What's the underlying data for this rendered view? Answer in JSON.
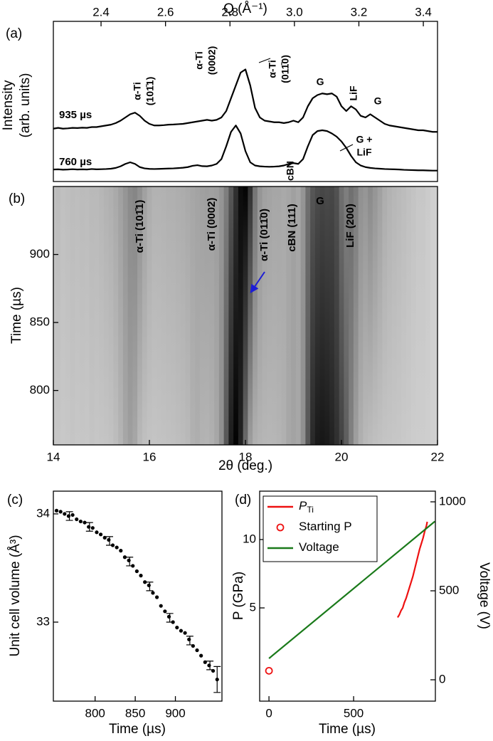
{
  "chart_data": [
    {
      "type": "line",
      "panel_label": "(a)",
      "ylabel": [
        "Intensity",
        "(arb. units)"
      ],
      "x2label": "Q (Å⁻¹)",
      "x2lim": [
        2.252,
        3.444
      ],
      "x2ticks": [
        2.4,
        2.6,
        2.8,
        {
          "value": 3,
          "label": "3.0"
        },
        3.2,
        3.4
      ],
      "xlim": [
        14,
        22
      ],
      "ylim": [
        0,
        100
      ],
      "x": [
        14,
        14.1,
        14.2,
        14.3,
        14.4,
        14.5,
        14.6,
        14.7,
        14.8,
        14.9,
        15,
        15.1,
        15.2,
        15.3,
        15.4,
        15.5,
        15.6,
        15.7,
        15.8,
        15.9,
        16,
        16.1,
        16.2,
        16.3,
        16.4,
        16.5,
        16.6,
        16.7,
        16.8,
        16.9,
        17,
        17.1,
        17.2,
        17.3,
        17.4,
        17.5,
        17.6,
        17.7,
        17.8,
        17.9,
        18,
        18.1,
        18.2,
        18.3,
        18.4,
        18.5,
        18.6,
        18.7,
        18.8,
        18.9,
        19,
        19.1,
        19.2,
        19.3,
        19.4,
        19.5,
        19.6,
        19.7,
        19.8,
        19.9,
        20,
        20.1,
        20.2,
        20.3,
        20.4,
        20.5,
        20.6,
        20.7,
        20.8,
        20.9,
        21,
        21.1,
        21.2,
        21.3,
        21.4,
        21.5,
        21.6,
        21.7,
        21.8,
        21.9,
        22
      ],
      "series": [
        {
          "name": "935 µs",
          "color": "#000000",
          "values": [
            33,
            33.5,
            33,
            33.2,
            33.5,
            33.4,
            33.6,
            33.5,
            34,
            34,
            34.5,
            35,
            35.5,
            36.5,
            38,
            40,
            42,
            43,
            41,
            38,
            36,
            35,
            35,
            35.2,
            35.5,
            35.6,
            35.8,
            36,
            36.5,
            37,
            37.5,
            38,
            38.5,
            38,
            38.5,
            40,
            44,
            52,
            60,
            68,
            70,
            60,
            46,
            40,
            38,
            37.5,
            37,
            37,
            36.5,
            37,
            38,
            37,
            40,
            47,
            52,
            54,
            55,
            54.5,
            55,
            53,
            47,
            44,
            47,
            45,
            41,
            40,
            42,
            40,
            38,
            36,
            35,
            34.5,
            34,
            33.5,
            33,
            32.5,
            32,
            32,
            31.5,
            31,
            31
          ]
        },
        {
          "name": "760 µs",
          "color": "#000000",
          "values": [
            7.5,
            7.6,
            7.4,
            7.5,
            7.7,
            7.5,
            7.6,
            7.5,
            7.8,
            7.6,
            7.7,
            7.8,
            8,
            8.5,
            9.5,
            11,
            12,
            11,
            9,
            8.2,
            7.9,
            7.8,
            7.9,
            8,
            8.1,
            8.2,
            8.4,
            8.6,
            9,
            9.8,
            10.2,
            9.6,
            9.5,
            10,
            11,
            14,
            22,
            31,
            35,
            30,
            19,
            12,
            10,
            9.5,
            9.3,
            9.2,
            9.3,
            9.5,
            10,
            11,
            11.5,
            11,
            14,
            22,
            29,
            31.5,
            32,
            31.5,
            30,
            28,
            25,
            21,
            16,
            12,
            10,
            9,
            8.5,
            8.2,
            8,
            7.8,
            7.7,
            7.6,
            7.5,
            7.3,
            7.2,
            7.1,
            7,
            7,
            6.9,
            6.8,
            6.8
          ]
        }
      ],
      "annotations": [
        {
          "text": [
            "α-Ti",
            "(101̄1)"
          ]
        },
        {
          "text": [
            "α-Ti",
            "(0002)"
          ]
        },
        {
          "text": [
            "α-Ti",
            "(011̄0)"
          ]
        },
        {
          "text": [
            "G"
          ]
        },
        {
          "text": [
            "LiF"
          ]
        },
        {
          "text": [
            "G"
          ]
        },
        {
          "text": [
            "cBN"
          ]
        },
        {
          "text": [
            "G +",
            "LiF"
          ]
        }
      ]
    },
    {
      "type": "heatmap",
      "panel_label": "(b)",
      "xlabel": "2θ (deg.)",
      "ylabel": "Time (µs)",
      "xlim": [
        14,
        22
      ],
      "xticks": [
        14,
        16,
        18,
        20,
        22
      ],
      "ylim": [
        760,
        950
      ],
      "yticks": [
        800,
        850,
        900
      ],
      "annotations": [
        {
          "text": "α-Ti (101̄1)",
          "color": "#1c1cd6"
        },
        {
          "text": "α-Ti (0002)",
          "color": "#1c1cd6"
        },
        {
          "text": "α-Ti (011̄0)",
          "color": "#1c1cd6"
        },
        {
          "text": "cBN (111)",
          "color": "#e01414"
        },
        {
          "text": "G",
          "color": "#22e6e6"
        },
        {
          "text": "LiF (200)",
          "color": "#f2f200"
        }
      ]
    },
    {
      "type": "scatter",
      "panel_label": "(c)",
      "xlabel": "Time (µs)",
      "ylabel": "Unit cell volume (Å³)",
      "xlim": [
        748,
        958
      ],
      "xticks": [
        800,
        850,
        900
      ],
      "ylim": [
        32.27,
        34.21
      ],
      "yticks": [
        33,
        34
      ],
      "series": [
        {
          "color": "#000000",
          "x": [
            752,
            757,
            762,
            767,
            772,
            777,
            782,
            787,
            792,
            797,
            802,
            807,
            812,
            817,
            822,
            827,
            832,
            837,
            842,
            847,
            852,
            857,
            862,
            867,
            872,
            877,
            882,
            887,
            892,
            897,
            902,
            907,
            912,
            917,
            922,
            927,
            932,
            937,
            942,
            947,
            952
          ],
          "values": [
            34.03,
            34.02,
            34,
            33.98,
            33.99,
            33.95,
            33.93,
            33.92,
            33.88,
            33.87,
            33.83,
            33.81,
            33.78,
            33.76,
            33.71,
            33.69,
            33.66,
            33.6,
            33.57,
            33.52,
            33.47,
            33.43,
            33.37,
            33.34,
            33.27,
            33.23,
            33.15,
            33.1,
            33.05,
            33,
            32.95,
            32.92,
            32.9,
            32.84,
            32.78,
            32.74,
            32.69,
            32.63,
            32.6,
            32.55,
            32.47
          ]
        },
        {
          "color": "#000000",
          "x": [
            768,
            793,
            818,
            843,
            868,
            893,
            918,
            943,
            952
          ],
          "values": [
            33.98,
            33.88,
            33.75,
            33.56,
            33.33,
            33.04,
            32.83,
            32.6,
            32.47
          ],
          "errors": [
            0.04,
            0.04,
            0.04,
            0.04,
            0.04,
            0.04,
            0.04,
            0.04,
            0.12
          ]
        }
      ]
    },
    {
      "type": "line",
      "panel_label": "(d)",
      "xlabel": "Time (µs)",
      "ylabel": "P (GPa)",
      "y2label": "Voltage (V)",
      "xlim": [
        -55,
        983
      ],
      "xticks": [
        0,
        500
      ],
      "ylim": [
        -1.82,
        13.54
      ],
      "yticks": [
        5,
        10
      ],
      "y2lim": [
        -120,
        1060
      ],
      "y2ticks": [
        0,
        500,
        1000
      ],
      "legend": "upper left",
      "series": [
        {
          "name": "P",
          "name_subscript": "Ti",
          "color": "#ee1111",
          "x": [
            760,
            770,
            780,
            790,
            800,
            810,
            820,
            830,
            840,
            850,
            860,
            870,
            880,
            890,
            900,
            910,
            920,
            930,
            935
          ],
          "values": [
            4.3,
            4.5,
            4.8,
            5,
            5.4,
            5.7,
            6.1,
            6.5,
            6.9,
            7.3,
            7.8,
            8.3,
            8.8,
            9.3,
            9.7,
            10.1,
            10.6,
            11,
            11.3
          ]
        },
        {
          "name": "Starting P",
          "color": "#ee1111",
          "marker": "open-circle",
          "x": [
            0
          ],
          "values": [
            0.4
          ]
        },
        {
          "name": "Voltage",
          "color": "#1a7a1a",
          "axis": "y2",
          "x": [
            0,
            980
          ],
          "values": [
            120,
            890
          ]
        }
      ]
    }
  ]
}
